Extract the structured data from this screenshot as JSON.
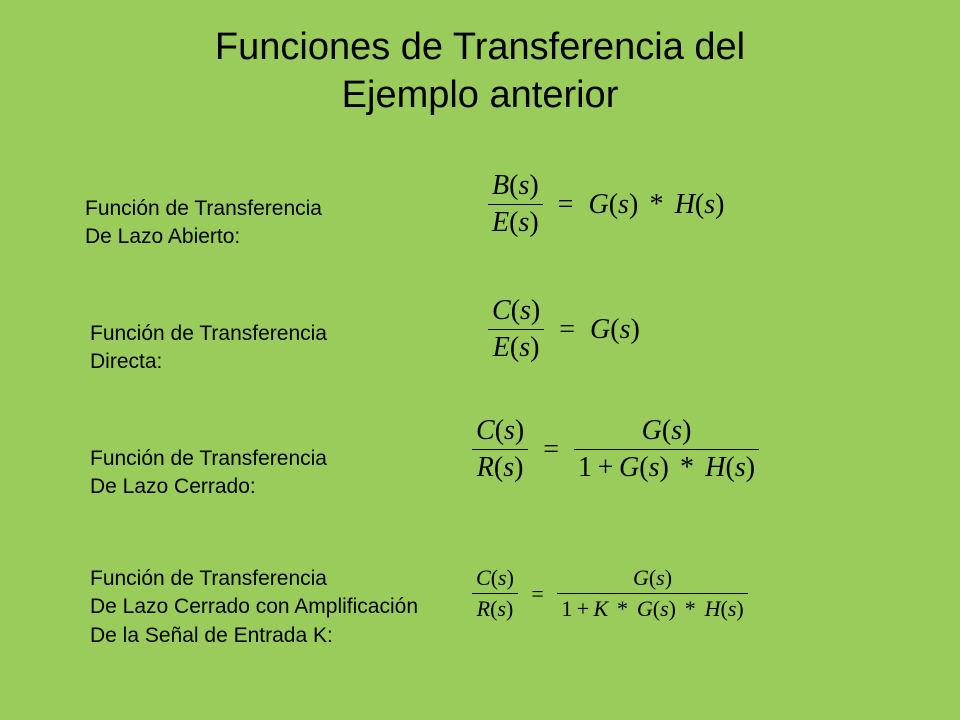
{
  "background_color": "#99cc5a",
  "text_color": "#000000",
  "title_fontsize": 38,
  "label_fontsize": 21,
  "title": "Funciones de Transferencia del\nEjemplo anterior",
  "rows": [
    {
      "label": "Función de Transferencia\nDe Lazo Abierto:",
      "formula": {
        "fontsize": 28,
        "lhs_num": "B(s)",
        "lhs_den": "E(s)",
        "rhs_type": "plain",
        "rhs": "G(s) * H(s)"
      }
    },
    {
      "label": "Función de Transferencia\nDirecta:",
      "formula": {
        "fontsize": 28,
        "lhs_num": "C(s)",
        "lhs_den": "E(s)",
        "rhs_type": "plain",
        "rhs": "G(s)"
      }
    },
    {
      "label": "Función de Transferencia\nDe Lazo Cerrado:",
      "formula": {
        "fontsize": 28,
        "lhs_num": "C(s)",
        "lhs_den": "R(s)",
        "rhs_type": "frac",
        "rhs_num": "G(s)",
        "rhs_den": "1 + G(s) * H(s)"
      }
    },
    {
      "label": "Función de Transferencia\nDe Lazo Cerrado con Amplificación\nDe la Señal de Entrada K:",
      "formula": {
        "fontsize": 22,
        "lhs_num": "C(s)",
        "lhs_den": "R(s)",
        "rhs_type": "frac",
        "rhs_num": "G(s)",
        "rhs_den": "1 + K * G(s) * H(s)"
      }
    }
  ]
}
